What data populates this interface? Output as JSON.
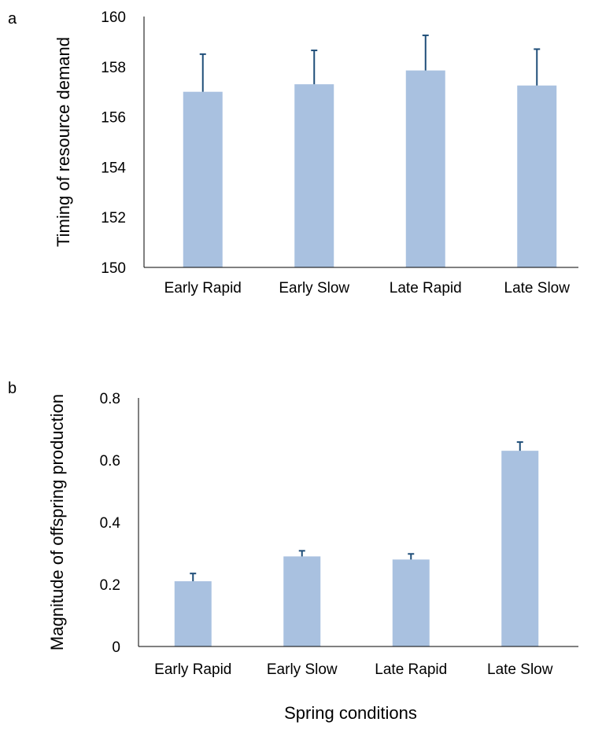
{
  "chart_data": [
    {
      "type": "bar",
      "panel_label": "a",
      "categories": [
        "Early Rapid",
        "Early Slow",
        "Late Rapid",
        "Late Slow"
      ],
      "values": [
        157.0,
        157.3,
        157.85,
        157.25
      ],
      "error_upper": [
        1.5,
        1.35,
        1.4,
        1.45
      ],
      "ylabel": "Timing of resource demand",
      "xlabel": "",
      "ylim": [
        150,
        160
      ],
      "yticks": [
        "150",
        "152",
        "154",
        "156",
        "158",
        "160"
      ],
      "colors": {
        "bar": "#a9c1e0",
        "error": "#1f4e79",
        "axis": "#000000"
      }
    },
    {
      "type": "bar",
      "panel_label": "b",
      "categories": [
        "Early Rapid",
        "Early Slow",
        "Late Rapid",
        "Late Slow"
      ],
      "values": [
        0.21,
        0.29,
        0.28,
        0.63
      ],
      "error_upper": [
        0.025,
        0.018,
        0.018,
        0.028
      ],
      "ylabel": "Magnitude of offspring production",
      "xlabel": "Spring conditions",
      "ylim": [
        0,
        0.8
      ],
      "yticks": [
        "0",
        "0.2",
        "0.4",
        "0.6",
        "0.8"
      ],
      "colors": {
        "bar": "#a9c1e0",
        "error": "#1f4e79",
        "axis": "#000000"
      }
    }
  ]
}
